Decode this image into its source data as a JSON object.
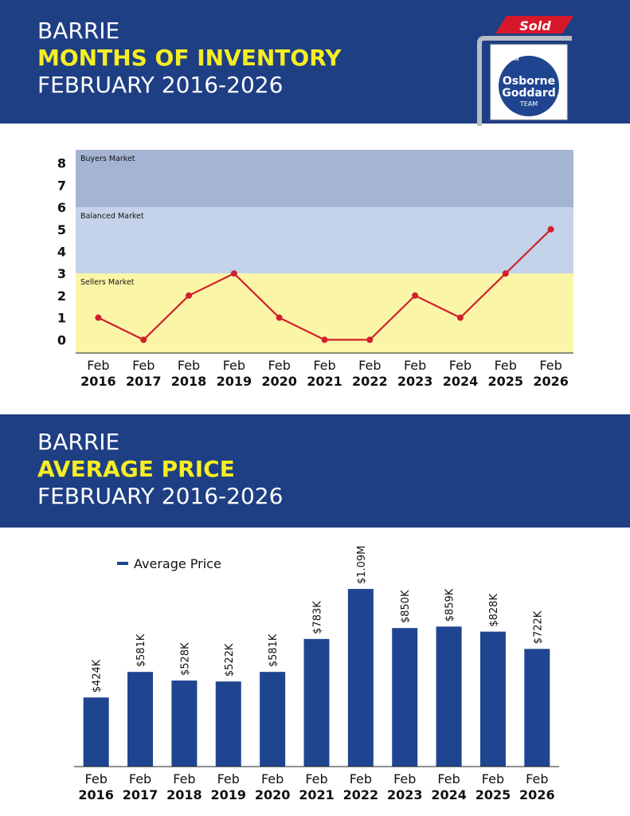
{
  "header1": {
    "line1": "BARRIE",
    "line2": "MONTHS OF INVENTORY",
    "line3": "FEBRUARY 2016-2026"
  },
  "header2": {
    "line1": "BARRIE",
    "line2": "AVERAGE PRICE",
    "line3": "FEBRUARY 2016-2026"
  },
  "logo": {
    "sign_text": "Sold",
    "brand": "RE/MAX",
    "name_line1": "Osborne",
    "name_line2": "Goddard",
    "name_line3": "TEAM"
  },
  "colors": {
    "header_bg": "#1f3f84",
    "accent_yellow": "#f6ee22",
    "line_color": "#d0202e",
    "bar_color": "#1f4590",
    "buyers_band": "#a5b4d3",
    "balanced_band": "#c4d3ea",
    "sellers_band": "#fbf6a7",
    "sign_red": "#d7182a"
  },
  "chart_data": [
    {
      "type": "line",
      "categories": [
        "Feb 2016",
        "Feb 2017",
        "Feb 2018",
        "Feb 2019",
        "Feb 2020",
        "Feb 2021",
        "Feb 2022",
        "Feb 2023",
        "Feb 2024",
        "Feb 2025",
        "Feb 2026"
      ],
      "cat_line1": [
        "Feb",
        "Feb",
        "Feb",
        "Feb",
        "Feb",
        "Feb",
        "Feb",
        "Feb",
        "Feb",
        "Feb",
        "Feb"
      ],
      "cat_line2": [
        "2016",
        "2017",
        "2018",
        "2019",
        "2020",
        "2021",
        "2022",
        "2023",
        "2024",
        "2025",
        "2026"
      ],
      "values": [
        1,
        0,
        2,
        3,
        1,
        0,
        0,
        2,
        1,
        3,
        5
      ],
      "yticks": [
        0,
        1,
        2,
        3,
        4,
        5,
        6,
        7,
        8
      ],
      "ylim": [
        -0.6,
        8.6
      ],
      "bands": [
        {
          "label": "Buyers Market",
          "from": 6,
          "to": 8.6
        },
        {
          "label": "Balanced Market",
          "from": 3,
          "to": 6
        },
        {
          "label": "Sellers Market",
          "from": -0.6,
          "to": 3
        }
      ]
    },
    {
      "type": "bar",
      "categories": [
        "Feb 2016",
        "Feb 2017",
        "Feb 2018",
        "Feb 2019",
        "Feb 2020",
        "Feb 2021",
        "Feb 2022",
        "Feb 2023",
        "Feb 2024",
        "Feb 2025",
        "Feb 2026"
      ],
      "cat_line1": [
        "Feb",
        "Feb",
        "Feb",
        "Feb",
        "Feb",
        "Feb",
        "Feb",
        "Feb",
        "Feb",
        "Feb",
        "Feb"
      ],
      "cat_line2": [
        "2016",
        "2017",
        "2018",
        "2019",
        "2020",
        "2021",
        "2022",
        "2023",
        "2024",
        "2025",
        "2026"
      ],
      "values": [
        424000,
        581000,
        528000,
        522000,
        581000,
        783000,
        1090000,
        850000,
        859000,
        828000,
        722000
      ],
      "labels": [
        "$424K",
        "$581K",
        "$528K",
        "$522K",
        "$581K",
        "$783K",
        "$1.09M",
        "$850K",
        "$859K",
        "$828K",
        "$722K"
      ],
      "series_name": "Average Price",
      "ylim": [
        0,
        1100000
      ],
      "legend": "top-left"
    }
  ]
}
